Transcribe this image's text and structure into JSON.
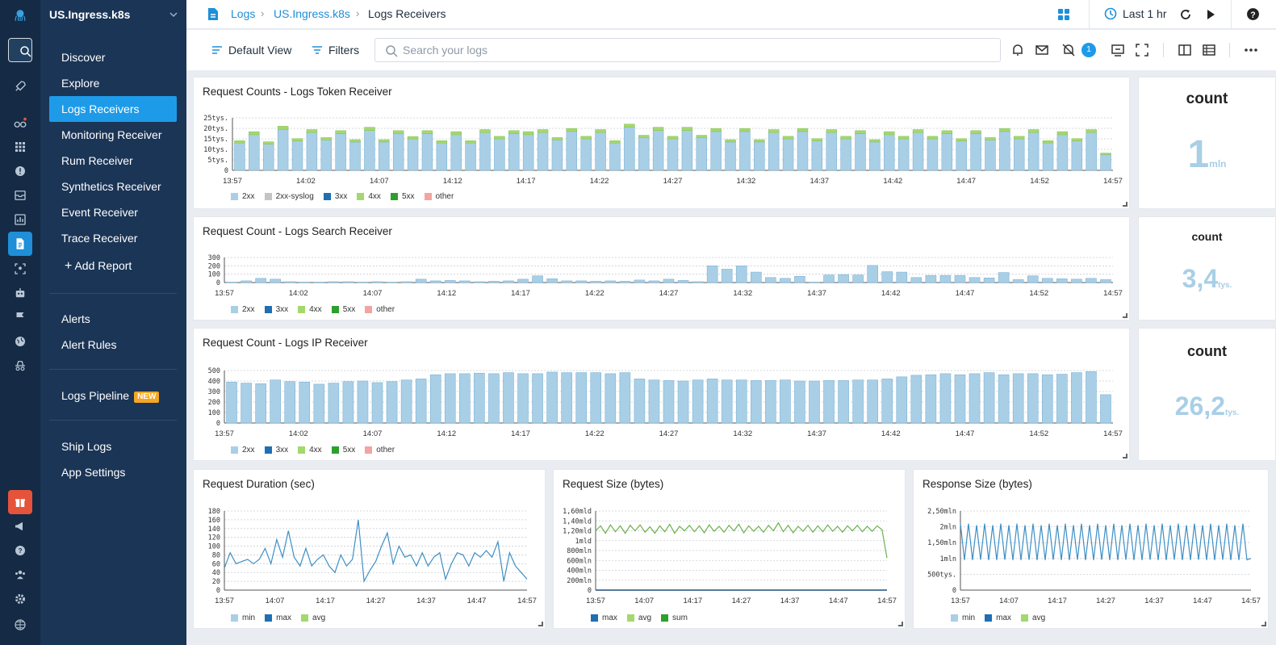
{
  "account": "US.Ingress.k8s",
  "nav": {
    "primary": [
      "Discover",
      "Explore",
      "Logs Receivers",
      "Monitoring Receiver",
      "Rum Receiver",
      "Synthetics Receiver",
      "Event Receiver",
      "Trace Receiver"
    ],
    "add_report": "Add Report",
    "alerts": [
      "Alerts",
      "Alert Rules"
    ],
    "pipeline": "Logs Pipeline",
    "pipeline_badge": "NEW",
    "footer": [
      "Ship Logs",
      "App Settings"
    ]
  },
  "breadcrumb": [
    "Logs",
    "US.Ingress.k8s",
    "Logs Receivers"
  ],
  "header": {
    "time_range": "Last 1 hr"
  },
  "toolbar": {
    "default_view": "Default View",
    "filters": "Filters",
    "search_placeholder": "Search your logs",
    "notification_count": "1"
  },
  "colors": {
    "accent": "#1e8fd8",
    "bar_2xx": "#a9cfe6",
    "bar_4xx": "#a4d86e",
    "syslog": "#c4c4c4",
    "c3xx": "#1f6fb2",
    "c5xx": "#2ca02c",
    "other": "#f4a4a0",
    "line_blue": "#3d8fc4",
    "line_green": "#6ab04c",
    "stat_value": "#a8cfe6"
  },
  "panels": {
    "token": {
      "title": "Request Counts - Logs Token Receiver",
      "legend": [
        "2xx",
        "2xx-syslog",
        "3xx",
        "4xx",
        "5xx",
        "other"
      ],
      "stat_title": "count",
      "stat_value": "1",
      "stat_unit": "mln"
    },
    "search": {
      "title": "Request Count - Logs Search Receiver",
      "legend": [
        "2xx",
        "3xx",
        "4xx",
        "5xx",
        "other"
      ],
      "stat_title": "count",
      "stat_value": "3,4",
      "stat_unit": "tys."
    },
    "ip": {
      "title": "Request Count - Logs IP Receiver",
      "legend": [
        "2xx",
        "3xx",
        "4xx",
        "5xx",
        "other"
      ],
      "stat_title": "count",
      "stat_value": "26,2",
      "stat_unit": "tys."
    },
    "duration": {
      "title": "Request Duration (sec)",
      "legend": [
        "min",
        "max",
        "avg"
      ]
    },
    "reqsize": {
      "title": "Request Size (bytes)",
      "legend": [
        "max",
        "avg",
        "sum"
      ]
    },
    "respsize": {
      "title": "Response Size (bytes)",
      "legend": [
        "min",
        "max",
        "avg"
      ]
    }
  },
  "chart_data": [
    {
      "type": "bar",
      "title": "Request Counts - Logs Token Receiver",
      "x_ticks": [
        "13:57",
        "14:02",
        "14:07",
        "14:12",
        "14:17",
        "14:22",
        "14:27",
        "14:32",
        "14:37",
        "14:42",
        "14:47",
        "14:52",
        "14:57"
      ],
      "y_ticks": [
        "0",
        "5tys.",
        "10tys.",
        "15tys.",
        "20tys.",
        "25tys."
      ],
      "ylim": [
        0,
        25000
      ],
      "series": [
        {
          "name": "2xx",
          "values": [
            13000,
            17000,
            12500,
            19500,
            14000,
            18000,
            14500,
            17500,
            13500,
            19000,
            13500,
            17500,
            15000,
            17500,
            13000,
            17000,
            13000,
            18000,
            15000,
            17500,
            17000,
            18000,
            14500,
            18500,
            15000,
            18000,
            13000,
            20500,
            15500,
            19000,
            15000,
            19000,
            15500,
            18500,
            13500,
            18500,
            13500,
            18000,
            15000,
            18500,
            14000,
            18000,
            15000,
            17500,
            13500,
            17000,
            15000,
            18000,
            15000,
            17500,
            14000,
            17500,
            14500,
            18500,
            15000,
            18000,
            13000,
            17000,
            14000,
            18000,
            7500
          ]
        },
        {
          "name": "4xx",
          "values": [
            1100,
            1400,
            1100,
            1500,
            1100,
            1400,
            1100,
            1400,
            1100,
            1500,
            1100,
            1400,
            1100,
            1400,
            1100,
            1400,
            1100,
            1400,
            1200,
            1400,
            1400,
            1400,
            1100,
            1400,
            1200,
            1400,
            1100,
            1500,
            1200,
            1500,
            1200,
            1500,
            1200,
            1400,
            1100,
            1400,
            1100,
            1400,
            1200,
            1400,
            1100,
            1400,
            1200,
            1400,
            1100,
            1400,
            1200,
            1400,
            1200,
            1400,
            1100,
            1400,
            1100,
            1400,
            1200,
            1400,
            1100,
            1400,
            1100,
            1400,
            700
          ]
        }
      ],
      "legend": "bottom-left"
    },
    {
      "type": "bar",
      "title": "Request Count - Logs Search Receiver",
      "x_ticks": [
        "13:57",
        "14:02",
        "14:07",
        "14:12",
        "14:17",
        "14:22",
        "14:27",
        "14:32",
        "14:37",
        "14:42",
        "14:47",
        "14:52",
        "14:57"
      ],
      "y_ticks": [
        "0",
        "100",
        "200",
        "300"
      ],
      "ylim": [
        0,
        300
      ],
      "series": [
        {
          "name": "2xx",
          "values": [
            5,
            20,
            50,
            40,
            10,
            5,
            5,
            10,
            10,
            5,
            10,
            5,
            10,
            40,
            20,
            25,
            20,
            10,
            15,
            20,
            40,
            80,
            45,
            20,
            20,
            15,
            20,
            15,
            30,
            20,
            40,
            25,
            10,
            200,
            160,
            200,
            125,
            60,
            50,
            75,
            5,
            90,
            95,
            90,
            205,
            130,
            125,
            60,
            85,
            85,
            85,
            60,
            55,
            120,
            35,
            80,
            50,
            45,
            40,
            50,
            35
          ]
        }
      ],
      "legend": "bottom-left"
    },
    {
      "type": "bar",
      "title": "Request Count - Logs IP Receiver",
      "x_ticks": [
        "13:57",
        "14:02",
        "14:07",
        "14:12",
        "14:17",
        "14:22",
        "14:27",
        "14:32",
        "14:37",
        "14:42",
        "14:47",
        "14:52",
        "14:57"
      ],
      "y_ticks": [
        "0",
        "100",
        "200",
        "300",
        "400",
        "500"
      ],
      "ylim": [
        0,
        500
      ],
      "series": [
        {
          "name": "2xx",
          "values": [
            390,
            380,
            375,
            410,
            395,
            390,
            370,
            380,
            395,
            400,
            385,
            395,
            410,
            420,
            460,
            470,
            470,
            475,
            470,
            480,
            470,
            470,
            485,
            480,
            480,
            480,
            470,
            480,
            420,
            410,
            405,
            400,
            410,
            420,
            410,
            410,
            405,
            405,
            410,
            400,
            400,
            405,
            405,
            410,
            410,
            420,
            440,
            455,
            460,
            470,
            460,
            470,
            480,
            460,
            470,
            470,
            460,
            465,
            480,
            490,
            270
          ]
        }
      ],
      "legend": "bottom-left"
    },
    {
      "type": "line",
      "title": "Request Duration (sec)",
      "x_ticks": [
        "13:57",
        "14:07",
        "14:17",
        "14:27",
        "14:37",
        "14:47",
        "14:57"
      ],
      "y_ticks": [
        "0",
        "20",
        "40",
        "60",
        "80",
        "100",
        "120",
        "140",
        "160",
        "180"
      ],
      "ylim": [
        0,
        180
      ],
      "series": [
        {
          "name": "max",
          "values": [
            50,
            85,
            60,
            65,
            70,
            60,
            70,
            95,
            60,
            115,
            75,
            135,
            75,
            55,
            95,
            55,
            70,
            80,
            55,
            40,
            80,
            55,
            70,
            160,
            20,
            45,
            65,
            100,
            130,
            60,
            100,
            75,
            80,
            55,
            85,
            55,
            75,
            85,
            25,
            60,
            85,
            80,
            55,
            85,
            75,
            90,
            75,
            110,
            20,
            85,
            55,
            40,
            25
          ]
        }
      ],
      "legend": "bottom-left"
    },
    {
      "type": "line",
      "title": "Request Size (bytes)",
      "x_ticks": [
        "13:57",
        "14:07",
        "14:17",
        "14:27",
        "14:37",
        "14:47",
        "14:57"
      ],
      "y_ticks": [
        "0",
        "200mln",
        "400mln",
        "600mln",
        "800mln",
        "1mld",
        "1,20mld",
        "1,40mld",
        "1,60mld"
      ],
      "ylim": [
        0,
        1600000000
      ],
      "series": [
        {
          "name": "max",
          "values": [
            0,
            0,
            0,
            0,
            0,
            0,
            0,
            0,
            0,
            0,
            0,
            0,
            0,
            0,
            0,
            0,
            0,
            0,
            0,
            0,
            0,
            0,
            0,
            0,
            0,
            0,
            0,
            0,
            0,
            0,
            0,
            0,
            0,
            0,
            0,
            0,
            0,
            0,
            0,
            0,
            0,
            0,
            0,
            0,
            0,
            0,
            0,
            0,
            0,
            0,
            0,
            0,
            0,
            0,
            0,
            0,
            0,
            0,
            0,
            0
          ]
        },
        {
          "name": "avg",
          "values": [
            1200000000,
            1300000000,
            1150000000,
            1320000000,
            1180000000,
            1300000000,
            1150000000,
            1310000000,
            1200000000,
            1320000000,
            1170000000,
            1280000000,
            1150000000,
            1300000000,
            1180000000,
            1330000000,
            1150000000,
            1290000000,
            1200000000,
            1310000000,
            1180000000,
            1300000000,
            1160000000,
            1320000000,
            1190000000,
            1290000000,
            1170000000,
            1310000000,
            1200000000,
            1330000000,
            1160000000,
            1300000000,
            1190000000,
            1290000000,
            1170000000,
            1310000000,
            1200000000,
            1360000000,
            1180000000,
            1310000000,
            1160000000,
            1290000000,
            1190000000,
            1310000000,
            1170000000,
            1300000000,
            1180000000,
            1320000000,
            1190000000,
            1290000000,
            1170000000,
            1300000000,
            1200000000,
            1310000000,
            1180000000,
            1290000000,
            1190000000,
            1300000000,
            1220000000,
            650000000
          ]
        }
      ],
      "legend": "bottom-left"
    },
    {
      "type": "line",
      "title": "Response Size (bytes)",
      "x_ticks": [
        "13:57",
        "14:07",
        "14:17",
        "14:27",
        "14:37",
        "14:47",
        "14:57"
      ],
      "y_ticks": [
        "0",
        "500tys.",
        "1mln",
        "1,50mln",
        "2mln",
        "2,50mln"
      ],
      "ylim": [
        0,
        2500000
      ],
      "series": [
        {
          "name": "max",
          "values": [
            2100000,
            950000,
            2100000,
            950000,
            2050000,
            960000,
            2100000,
            950000,
            2050000,
            950000,
            2100000,
            960000,
            2050000,
            950000,
            2100000,
            950000,
            2050000,
            960000,
            2100000,
            950000,
            2050000,
            950000,
            2100000,
            960000,
            2050000,
            950000,
            2100000,
            950000,
            2050000,
            960000,
            2100000,
            950000,
            2050000,
            950000,
            2100000,
            960000,
            2050000,
            950000,
            2100000,
            950000,
            2050000,
            960000,
            2100000,
            950000,
            2050000,
            950000,
            2100000,
            960000,
            2050000,
            950000,
            2100000,
            950000,
            2050000,
            960000,
            2100000,
            950000,
            2050000,
            950000,
            2100000,
            960000,
            2050000,
            950000,
            2100000,
            950000,
            2050000,
            960000,
            2100000,
            950000,
            2050000,
            950000,
            2100000,
            960000,
            1000000
          ]
        }
      ],
      "legend": "bottom-left"
    }
  ]
}
